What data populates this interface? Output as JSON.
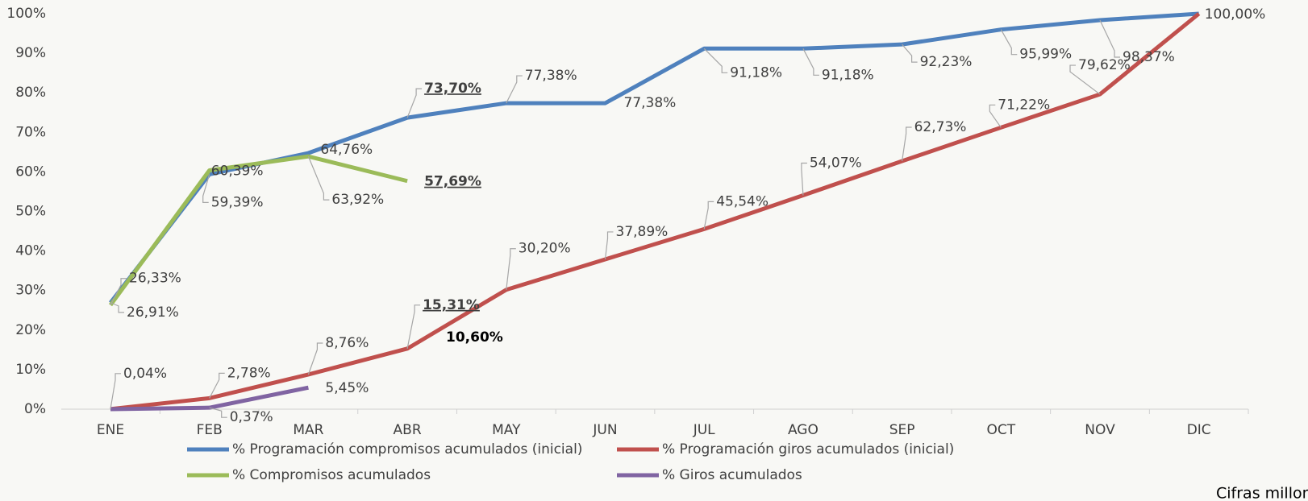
{
  "chart_data": {
    "type": "line",
    "categories": [
      "ENE",
      "FEB",
      "MAR",
      "ABR",
      "MAY",
      "JUN",
      "JUL",
      "AGO",
      "SEP",
      "OCT",
      "NOV",
      "DIC"
    ],
    "ylim": [
      0,
      100
    ],
    "yticks": [
      {
        "value": 0,
        "label": "0%"
      },
      {
        "value": 10,
        "label": "10%"
      },
      {
        "value": 20,
        "label": "20%"
      },
      {
        "value": 30,
        "label": "30%"
      },
      {
        "value": 40,
        "label": "40%"
      },
      {
        "value": 50,
        "label": "50%"
      },
      {
        "value": 60,
        "label": "60%"
      },
      {
        "value": 70,
        "label": "70%"
      },
      {
        "value": 80,
        "label": "80%"
      },
      {
        "value": 90,
        "label": "90%"
      },
      {
        "value": 100,
        "label": "100%"
      }
    ],
    "series": [
      {
        "name": "% Programación compromisos acumulados (inicial)",
        "color": "#4f81bd",
        "values": [
          26.91,
          59.39,
          64.76,
          73.7,
          77.38,
          77.38,
          91.18,
          91.18,
          92.23,
          95.99,
          98.37,
          100.0
        ],
        "value_labels": [
          "26,91%",
          "59,39%",
          "64,76%",
          "73,70%",
          "77,38%",
          "77,38%",
          "91,18%",
          "91,18%",
          "92,23%",
          "95,99%",
          "98,37%",
          "100,00%"
        ]
      },
      {
        "name": "% Programación giros acumulados (inicial)",
        "color": "#c0504d",
        "values": [
          0.04,
          2.78,
          8.76,
          15.31,
          30.2,
          37.89,
          45.54,
          54.07,
          62.73,
          71.22,
          79.62,
          100
        ],
        "value_labels": [
          "0,04%",
          "2,78%",
          "8,76%",
          "15,31%",
          "30,20%",
          "37,89%",
          "45,54%",
          "54,07%",
          "62,73%",
          "71,22%",
          "79,62%",
          null
        ]
      },
      {
        "name": "% Compromisos acumulados",
        "color": "#9bbb59",
        "values": [
          26.33,
          60.39,
          63.92,
          57.69,
          null,
          null,
          null,
          null,
          null,
          null,
          null,
          null
        ],
        "value_labels": [
          "26,33%",
          "60,39%",
          "63,92%",
          "57,69%",
          null,
          null,
          null,
          null,
          null,
          null,
          null,
          null
        ]
      },
      {
        "name": "% Giros acumulados",
        "color": "#8064a2",
        "values": [
          0,
          0.37,
          5.45,
          null,
          null,
          null,
          null,
          null,
          null,
          null,
          null,
          null
        ],
        "value_labels": [
          null,
          "0,37%",
          "5,45%",
          null,
          null,
          null,
          null,
          null,
          null,
          null,
          null,
          null
        ]
      }
    ],
    "annotations": [
      "10,60%"
    ],
    "note": "Cifras millones de pesos"
  }
}
